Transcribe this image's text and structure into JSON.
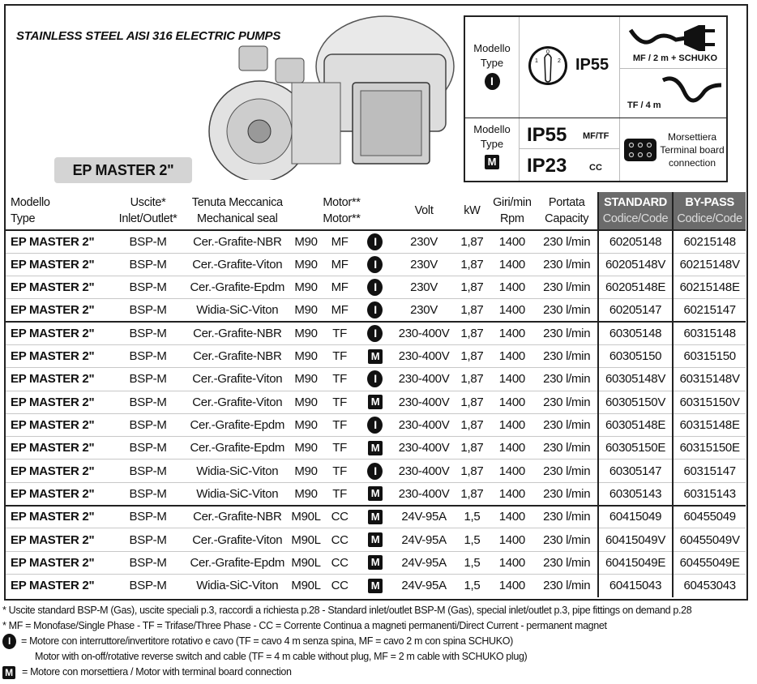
{
  "title": "STAINLESS STEEL AISI 316 ELECTRIC PUMPS",
  "model_name": "EP MASTER 2\"",
  "legend": {
    "modello": "Modello",
    "type": "Type",
    "badge_i": "I",
    "badge_m": "M",
    "ip55": "IP55",
    "ip55_b": "IP55",
    "ip23": "IP23",
    "mftf": "MF/TF",
    "cc": "CC",
    "mf_cable": "MF / 2 m + SCHUKO",
    "tf_cable": "TF / 4 m",
    "switch_labels": [
      "1",
      "0",
      "2"
    ],
    "terminal": [
      "Morsettiera",
      "Terminal board",
      "connection"
    ]
  },
  "table": {
    "headers": [
      [
        "Modello",
        "Type"
      ],
      [
        "Uscite*",
        "Inlet/Outlet*"
      ],
      [
        "Tenuta Meccanica",
        "Mechanical seal"
      ],
      [
        "Motor**",
        "Motor**"
      ],
      [
        "Volt"
      ],
      [
        "kW"
      ],
      [
        "Giri/min",
        "Rpm"
      ],
      [
        "Portata",
        "Capacity"
      ],
      [
        "STANDARD",
        "Codice/Code"
      ],
      [
        "BY-PASS",
        "Codice/Code"
      ]
    ],
    "rows": [
      [
        "EP MASTER 2\"",
        "BSP-M",
        "Cer.-Grafite-NBR",
        "M90",
        "MF",
        "I",
        "230V",
        "1,87",
        "1400",
        "230 l/min",
        "60205148",
        "60215148"
      ],
      [
        "EP MASTER 2\"",
        "BSP-M",
        "Cer.-Grafite-Viton",
        "M90",
        "MF",
        "I",
        "230V",
        "1,87",
        "1400",
        "230 l/min",
        "60205148V",
        "60215148V"
      ],
      [
        "EP MASTER 2\"",
        "BSP-M",
        "Cer.-Grafite-Epdm",
        "M90",
        "MF",
        "I",
        "230V",
        "1,87",
        "1400",
        "230 l/min",
        "60205148E",
        "60215148E"
      ],
      [
        "EP MASTER 2\"",
        "BSP-M",
        "Widia-SiC-Viton",
        "M90",
        "MF",
        "I",
        "230V",
        "1,87",
        "1400",
        "230 l/min",
        "60205147",
        "60215147"
      ],
      [
        "EP MASTER 2\"",
        "BSP-M",
        "Cer.-Grafite-NBR",
        "M90",
        "TF",
        "I",
        "230-400V",
        "1,87",
        "1400",
        "230 l/min",
        "60305148",
        "60315148"
      ],
      [
        "EP MASTER 2\"",
        "BSP-M",
        "Cer.-Grafite-NBR",
        "M90",
        "TF",
        "M",
        "230-400V",
        "1,87",
        "1400",
        "230 l/min",
        "60305150",
        "60315150"
      ],
      [
        "EP MASTER 2\"",
        "BSP-M",
        "Cer.-Grafite-Viton",
        "M90",
        "TF",
        "I",
        "230-400V",
        "1,87",
        "1400",
        "230 l/min",
        "60305148V",
        "60315148V"
      ],
      [
        "EP MASTER 2\"",
        "BSP-M",
        "Cer.-Grafite-Viton",
        "M90",
        "TF",
        "M",
        "230-400V",
        "1,87",
        "1400",
        "230 l/min",
        "60305150V",
        "60315150V"
      ],
      [
        "EP MASTER 2\"",
        "BSP-M",
        "Cer.-Grafite-Epdm",
        "M90",
        "TF",
        "I",
        "230-400V",
        "1,87",
        "1400",
        "230 l/min",
        "60305148E",
        "60315148E"
      ],
      [
        "EP MASTER 2\"",
        "BSP-M",
        "Cer.-Grafite-Epdm",
        "M90",
        "TF",
        "M",
        "230-400V",
        "1,87",
        "1400",
        "230 l/min",
        "60305150E",
        "60315150E"
      ],
      [
        "EP MASTER 2\"",
        "BSP-M",
        "Widia-SiC-Viton",
        "M90",
        "TF",
        "I",
        "230-400V",
        "1,87",
        "1400",
        "230 l/min",
        "60305147",
        "60315147"
      ],
      [
        "EP MASTER 2\"",
        "BSP-M",
        "Widia-SiC-Viton",
        "M90",
        "TF",
        "M",
        "230-400V",
        "1,87",
        "1400",
        "230 l/min",
        "60305143",
        "60315143"
      ],
      [
        "EP MASTER 2\"",
        "BSP-M",
        "Cer.-Grafite-NBR",
        "M90L",
        "CC",
        "M",
        "24V-95A",
        "1,5",
        "1400",
        "230 l/min",
        "60415049",
        "60455049"
      ],
      [
        "EP MASTER 2\"",
        "BSP-M",
        "Cer.-Grafite-Viton",
        "M90L",
        "CC",
        "M",
        "24V-95A",
        "1,5",
        "1400",
        "230 l/min",
        "60415049V",
        "60455049V"
      ],
      [
        "EP MASTER 2\"",
        "BSP-M",
        "Cer.-Grafite-Epdm",
        "M90L",
        "CC",
        "M",
        "24V-95A",
        "1,5",
        "1400",
        "230 l/min",
        "60415049E",
        "60455049E"
      ],
      [
        "EP MASTER 2\"",
        "BSP-M",
        "Widia-SiC-Viton",
        "M90L",
        "CC",
        "M",
        "24V-95A",
        "1,5",
        "1400",
        "230 l/min",
        "60415043",
        "60453043"
      ]
    ]
  },
  "notes": {
    "n1": "* Uscite standard BSP-M (Gas), uscite speciali p.3, raccordi a richiesta p.28 - Standard inlet/outlet BSP-M (Gas), special inlet/outlet p.3, pipe fittings on demand p.28",
    "n2": "* MF = Monofase/Single Phase - TF = Trifase/Three Phase - CC = Corrente Continua a magneti permanenti/Direct Current - permanent magnet",
    "n3a": "= Motore con interruttore/invertitore rotativo e cavo (TF = cavo 4 m senza spina, MF = cavo 2 m con spina SCHUKO)",
    "n3b": "Motor with on-off/rotative reverse switch and cable (TF = 4 m cable without plug, MF = 2 m cable with SCHUKO plug)",
    "n4": "= Motore con morsettiera / Motor with terminal board connection"
  }
}
